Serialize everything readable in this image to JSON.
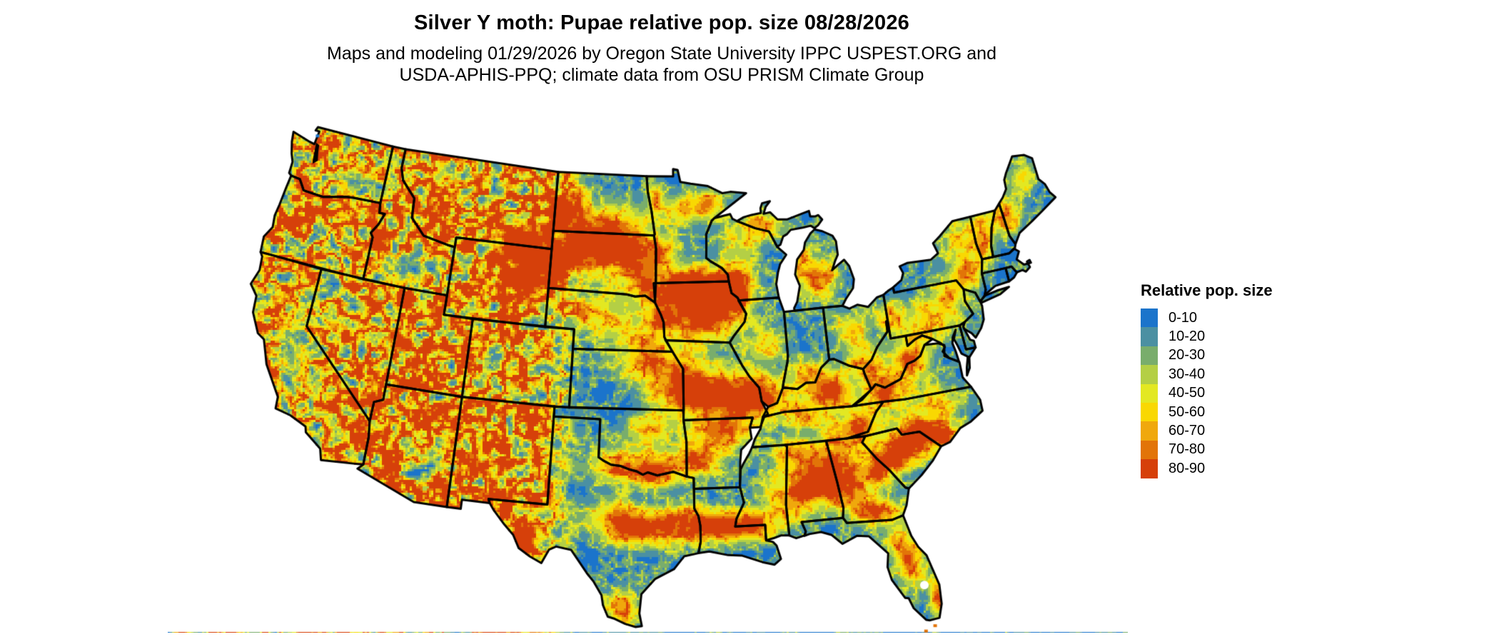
{
  "header": {
    "title": "Silver Y moth: Pupae relative pop. size 08/28/2026",
    "subtitle_line1": "Maps and modeling 01/29/2026 by Oregon State University IPPC USPEST.ORG and",
    "subtitle_line2": "USDA-APHIS-PPQ; climate data from OSU PRISM Climate Group"
  },
  "legend": {
    "title": "Relative pop. size",
    "entries": [
      {
        "label": "0-10",
        "color": "#1b74cb"
      },
      {
        "label": "10-20",
        "color": "#4b90a2"
      },
      {
        "label": "20-30",
        "color": "#79ad6c"
      },
      {
        "label": "30-40",
        "color": "#b4cf45"
      },
      {
        "label": "40-50",
        "color": "#e3e822"
      },
      {
        "label": "50-60",
        "color": "#f9d802"
      },
      {
        "label": "60-70",
        "color": "#f0a80c"
      },
      {
        "label": "70-80",
        "color": "#e27408"
      },
      {
        "label": "80-90",
        "color": "#d6400a"
      }
    ]
  },
  "map": {
    "region_label": "Contiguous United States",
    "border_color": "#000000",
    "water_color": "#ffffff",
    "background_color": "#ffffff"
  },
  "chart_data": {
    "type": "heatmap",
    "title": "Silver Y moth: Pupae relative pop. size 08/28/2026",
    "legend_title": "Relative pop. size",
    "bins": [
      "0-10",
      "10-20",
      "20-30",
      "30-40",
      "40-50",
      "50-60",
      "60-70",
      "70-80",
      "80-90"
    ],
    "bin_colors": [
      "#1b74cb",
      "#4b90a2",
      "#79ad6c",
      "#b4cf45",
      "#e3e822",
      "#f9d802",
      "#f0a80c",
      "#e27408",
      "#d6400a"
    ],
    "value_range": [
      0,
      90
    ],
    "legend_position": "right"
  }
}
